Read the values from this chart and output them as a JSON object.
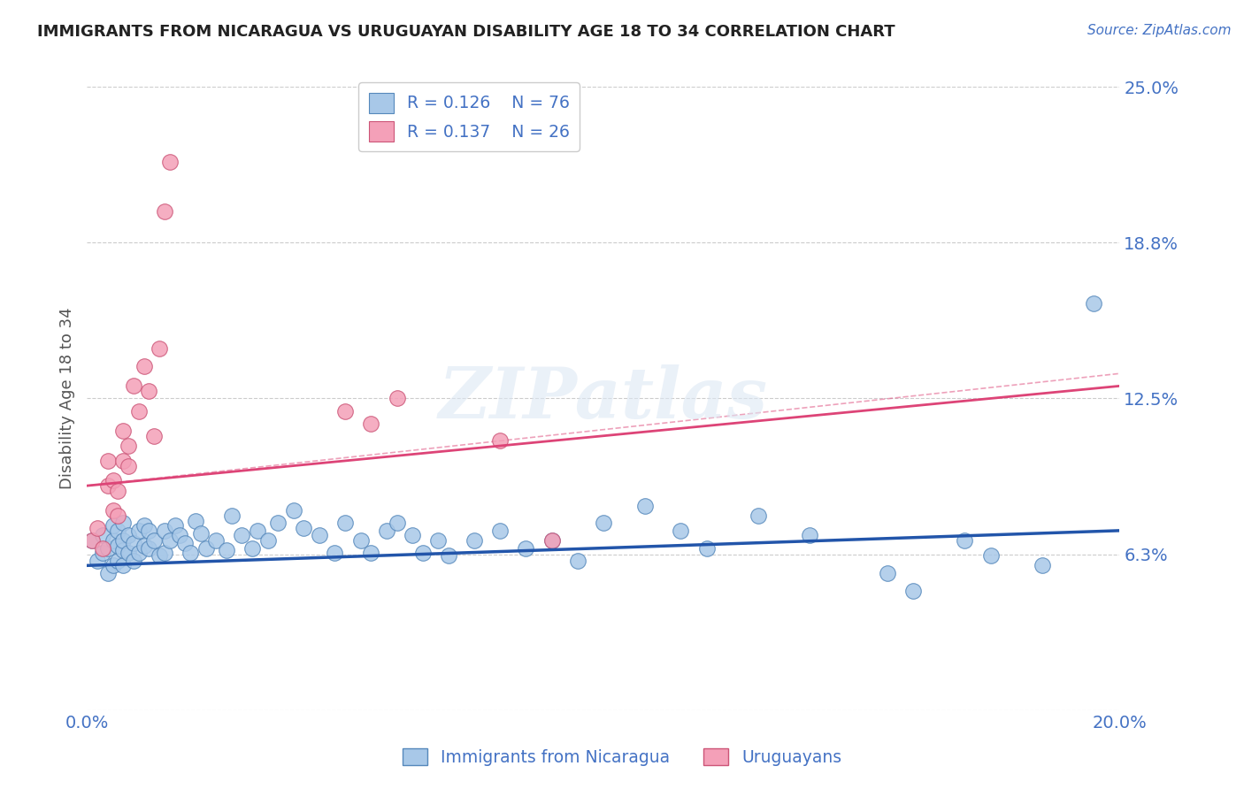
{
  "title": "IMMIGRANTS FROM NICARAGUA VS URUGUAYAN DISABILITY AGE 18 TO 34 CORRELATION CHART",
  "source_text": "Source: ZipAtlas.com",
  "ylabel": "Disability Age 18 to 34",
  "xlim": [
    0.0,
    0.2
  ],
  "ylim": [
    0.0,
    0.25
  ],
  "yticks": [
    0.0,
    0.0625,
    0.125,
    0.1875,
    0.25
  ],
  "ytick_labels": [
    "",
    "6.3%",
    "12.5%",
    "18.8%",
    "25.0%"
  ],
  "xticks": [
    0.0,
    0.05,
    0.1,
    0.15,
    0.2
  ],
  "xtick_labels": [
    "0.0%",
    "",
    "",
    "",
    "20.0%"
  ],
  "legend_r1": "R = 0.126",
  "legend_n1": "N = 76",
  "legend_r2": "R = 0.137",
  "legend_n2": "N = 26",
  "watermark": "ZIPatlas",
  "blue_color": "#a8c8e8",
  "pink_color": "#f4a0b8",
  "blue_edge_color": "#5588bb",
  "pink_edge_color": "#cc5577",
  "blue_line_color": "#2255aa",
  "pink_line_color": "#dd4477",
  "axis_color": "#4472c4",
  "blue_scatter_x": [
    0.001,
    0.002,
    0.003,
    0.003,
    0.004,
    0.004,
    0.005,
    0.005,
    0.005,
    0.006,
    0.006,
    0.006,
    0.007,
    0.007,
    0.007,
    0.007,
    0.008,
    0.008,
    0.009,
    0.009,
    0.01,
    0.01,
    0.011,
    0.011,
    0.012,
    0.012,
    0.013,
    0.014,
    0.015,
    0.015,
    0.016,
    0.017,
    0.018,
    0.019,
    0.02,
    0.021,
    0.022,
    0.023,
    0.025,
    0.027,
    0.028,
    0.03,
    0.032,
    0.033,
    0.035,
    0.037,
    0.04,
    0.042,
    0.045,
    0.048,
    0.05,
    0.053,
    0.055,
    0.058,
    0.06,
    0.063,
    0.065,
    0.068,
    0.07,
    0.075,
    0.08,
    0.085,
    0.09,
    0.095,
    0.1,
    0.108,
    0.115,
    0.12,
    0.13,
    0.14,
    0.155,
    0.16,
    0.17,
    0.175,
    0.185,
    0.195
  ],
  "blue_scatter_y": [
    0.068,
    0.06,
    0.063,
    0.07,
    0.055,
    0.065,
    0.058,
    0.068,
    0.074,
    0.06,
    0.066,
    0.072,
    0.058,
    0.064,
    0.068,
    0.075,
    0.063,
    0.07,
    0.06,
    0.067,
    0.063,
    0.072,
    0.066,
    0.074,
    0.065,
    0.072,
    0.068,
    0.062,
    0.063,
    0.072,
    0.068,
    0.074,
    0.07,
    0.067,
    0.063,
    0.076,
    0.071,
    0.065,
    0.068,
    0.064,
    0.078,
    0.07,
    0.065,
    0.072,
    0.068,
    0.075,
    0.08,
    0.073,
    0.07,
    0.063,
    0.075,
    0.068,
    0.063,
    0.072,
    0.075,
    0.07,
    0.063,
    0.068,
    0.062,
    0.068,
    0.072,
    0.065,
    0.068,
    0.06,
    0.075,
    0.082,
    0.072,
    0.065,
    0.078,
    0.07,
    0.055,
    0.048,
    0.068,
    0.062,
    0.058,
    0.163
  ],
  "pink_scatter_x": [
    0.001,
    0.002,
    0.003,
    0.004,
    0.004,
    0.005,
    0.005,
    0.006,
    0.006,
    0.007,
    0.007,
    0.008,
    0.008,
    0.009,
    0.01,
    0.011,
    0.012,
    0.013,
    0.014,
    0.015,
    0.016,
    0.05,
    0.055,
    0.06,
    0.08,
    0.09
  ],
  "pink_scatter_y": [
    0.068,
    0.073,
    0.065,
    0.09,
    0.1,
    0.08,
    0.092,
    0.078,
    0.088,
    0.1,
    0.112,
    0.098,
    0.106,
    0.13,
    0.12,
    0.138,
    0.128,
    0.11,
    0.145,
    0.2,
    0.22,
    0.12,
    0.115,
    0.125,
    0.108,
    0.068
  ],
  "blue_trend_x": [
    0.0,
    0.2
  ],
  "blue_trend_y": [
    0.058,
    0.072
  ],
  "pink_trend_x": [
    0.0,
    0.2
  ],
  "pink_trend_y": [
    0.09,
    0.13
  ],
  "background_color": "#ffffff",
  "grid_color": "#cccccc",
  "title_color": "#222222",
  "tick_label_color": "#4472c4"
}
